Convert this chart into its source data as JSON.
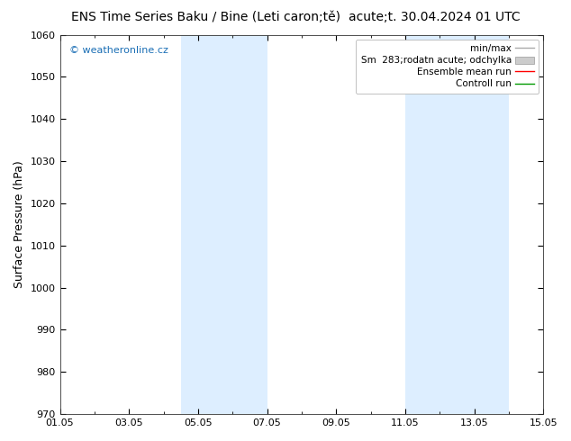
{
  "title_left": "ENS Time Series Baku / Bine (Leti caron;tě)",
  "title_right": "acute;t. 30.04.2024 01 UTC",
  "ylabel": "Surface Pressure (hPa)",
  "ymin": 970,
  "ymax": 1060,
  "yticks": [
    970,
    980,
    990,
    1000,
    1010,
    1020,
    1030,
    1040,
    1050,
    1060
  ],
  "xtick_labels": [
    "01.05",
    "03.05",
    "05.05",
    "07.05",
    "09.05",
    "11.05",
    "13.05",
    "15.05"
  ],
  "xtick_positions": [
    0,
    2,
    4,
    6,
    8,
    10,
    12,
    14
  ],
  "shaded_bands": [
    {
      "x_start": 3.5,
      "x_end": 6.0,
      "color": "#ddeeff",
      "alpha": 1.0
    },
    {
      "x_start": 10.0,
      "x_end": 13.0,
      "color": "#ddeeff",
      "alpha": 1.0
    }
  ],
  "watermark": "© weatheronline.cz",
  "watermark_color": "#1a6eb5",
  "background_color": "#ffffff",
  "plot_bg_color": "#ffffff",
  "title_fontsize": 10,
  "axis_fontsize": 9,
  "tick_fontsize": 8,
  "legend_fontsize": 7.5
}
